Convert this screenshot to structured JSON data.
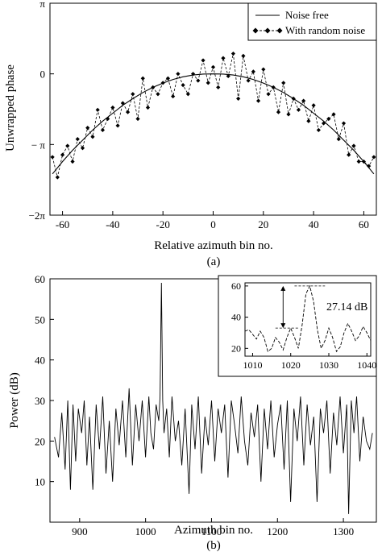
{
  "chart_data": [
    {
      "type": "line",
      "panel_label": "(a)",
      "xlabel": "Relative azimuth bin no.",
      "ylabel": "Unwrapped phase",
      "xlim": [
        -65,
        65
      ],
      "ylim": [
        -6.2832,
        3.1416
      ],
      "x_ticks": [
        -60,
        -40,
        -20,
        0,
        20,
        40,
        60
      ],
      "y_ticks": [
        {
          "value": 3.1416,
          "label": "π"
        },
        {
          "value": 0,
          "label": "0"
        },
        {
          "value": -3.1416,
          "label": "− π"
        },
        {
          "value": -6.2832,
          "label": "−2π"
        }
      ],
      "legend_position": "top-right",
      "series": [
        {
          "name": "Noise free",
          "style": "solid",
          "x": [
            -64,
            -60,
            -56,
            -52,
            -48,
            -44,
            -40,
            -36,
            -32,
            -28,
            -24,
            -20,
            -16,
            -12,
            -8,
            -4,
            0,
            4,
            8,
            12,
            16,
            20,
            24,
            28,
            32,
            36,
            40,
            44,
            48,
            52,
            56,
            60,
            64
          ],
          "y": [
            -4.45,
            -3.9,
            -3.4,
            -2.95,
            -2.5,
            -2.1,
            -1.75,
            -1.4,
            -1.1,
            -0.83,
            -0.6,
            -0.41,
            -0.25,
            -0.13,
            -0.05,
            -0.01,
            0,
            -0.01,
            -0.05,
            -0.13,
            -0.25,
            -0.41,
            -0.6,
            -0.83,
            -1.1,
            -1.4,
            -1.75,
            -2.1,
            -2.5,
            -2.95,
            -3.4,
            -3.9,
            -4.45
          ]
        },
        {
          "name": "With random noise",
          "style": "dashed-diamond",
          "x": [
            -64,
            -62,
            -60,
            -58,
            -56,
            -54,
            -52,
            -50,
            -48,
            -46,
            -44,
            -42,
            -40,
            -38,
            -36,
            -34,
            -32,
            -30,
            -28,
            -26,
            -24,
            -22,
            -20,
            -18,
            -16,
            -14,
            -12,
            -10,
            -8,
            -6,
            -4,
            -2,
            0,
            2,
            4,
            6,
            8,
            10,
            12,
            14,
            16,
            18,
            20,
            22,
            24,
            26,
            28,
            30,
            32,
            34,
            36,
            38,
            40,
            42,
            44,
            46,
            48,
            50,
            52,
            54,
            56,
            58,
            60,
            62,
            64
          ],
          "y": [
            -3.7,
            -4.6,
            -3.6,
            -3.2,
            -3.9,
            -2.9,
            -3.3,
            -2.4,
            -2.8,
            -1.6,
            -2.5,
            -2.0,
            -1.5,
            -2.3,
            -1.3,
            -1.7,
            -0.9,
            -2.0,
            -0.2,
            -1.5,
            -0.6,
            -0.9,
            -0.4,
            -0.2,
            -1.0,
            0.0,
            -0.5,
            -0.9,
            0.0,
            -0.3,
            0.6,
            -0.4,
            0.3,
            -0.6,
            0.7,
            -0.1,
            0.9,
            -1.1,
            0.8,
            -0.3,
            0.1,
            -1.2,
            0.2,
            -0.9,
            -0.6,
            -1.7,
            -0.4,
            -1.8,
            -1.1,
            -1.6,
            -1.2,
            -2.1,
            -1.4,
            -2.5,
            -2.2,
            -2.0,
            -1.8,
            -2.9,
            -2.2,
            -3.6,
            -3.2,
            -3.9,
            -3.9,
            -4.1,
            -3.7
          ]
        }
      ]
    },
    {
      "type": "line",
      "panel_label": "(b)",
      "xlabel": "Azimuth bin no.",
      "ylabel": "Power (dB)",
      "xlim": [
        855,
        1350
      ],
      "ylim": [
        0,
        60
      ],
      "x_ticks": [
        900,
        1000,
        1100,
        1200,
        1300
      ],
      "y_ticks": [
        10,
        20,
        30,
        40,
        50,
        60
      ],
      "series": [
        {
          "name": "",
          "x": [
            862,
            868,
            873,
            878,
            882,
            886,
            890,
            894,
            898,
            903,
            907,
            911,
            915,
            920,
            925,
            930,
            935,
            940,
            945,
            950,
            955,
            960,
            965,
            970,
            975,
            980,
            985,
            990,
            995,
            1000,
            1005,
            1008,
            1012,
            1016,
            1020,
            1022,
            1024,
            1026,
            1028,
            1032,
            1036,
            1040,
            1045,
            1050,
            1055,
            1060,
            1066,
            1070,
            1075,
            1080,
            1085,
            1090,
            1095,
            1100,
            1105,
            1110,
            1115,
            1120,
            1125,
            1130,
            1135,
            1140,
            1145,
            1150,
            1155,
            1160,
            1165,
            1170,
            1175,
            1180,
            1185,
            1190,
            1195,
            1200,
            1205,
            1210,
            1215,
            1220,
            1225,
            1230,
            1235,
            1240,
            1245,
            1250,
            1255,
            1260,
            1265,
            1270,
            1275,
            1280,
            1285,
            1290,
            1295,
            1300,
            1305,
            1308,
            1312,
            1316,
            1320,
            1325,
            1330,
            1335,
            1340,
            1344
          ],
          "y": [
            21,
            16,
            27,
            13,
            30,
            8,
            29,
            15,
            28,
            22,
            30,
            14,
            26,
            8,
            29,
            18,
            31,
            12,
            25,
            10,
            28,
            19,
            30,
            16,
            33,
            14,
            29,
            20,
            30,
            16,
            31,
            22,
            18,
            29,
            25,
            31,
            59,
            30,
            22,
            28,
            16,
            31,
            20,
            25,
            14,
            28,
            7,
            29,
            18,
            31,
            12,
            26,
            19,
            30,
            15,
            28,
            22,
            29,
            11,
            30,
            24,
            17,
            31,
            20,
            14,
            27,
            21,
            29,
            10,
            28,
            18,
            30,
            16,
            24,
            29,
            13,
            30,
            5,
            28,
            20,
            31,
            14,
            29,
            19,
            26,
            5,
            28,
            22,
            30,
            12,
            27,
            19,
            31,
            17,
            29,
            2,
            30,
            22,
            31,
            15,
            26,
            20,
            18,
            22
          ]
        }
      ],
      "inset": {
        "xlim": [
          1008,
          1041
        ],
        "ylim": [
          15,
          62
        ],
        "x_ticks": [
          1010,
          1020,
          1030,
          1040
        ],
        "y_ticks": [
          20,
          40,
          60
        ],
        "annotation": "27.14 dB",
        "peak_level": 60,
        "secondary_level": 33,
        "series": {
          "x": [
            1008,
            1009,
            1010,
            1011,
            1012,
            1013,
            1014,
            1015,
            1016,
            1017,
            1018,
            1019,
            1020,
            1021,
            1022,
            1023,
            1024,
            1025,
            1026,
            1027,
            1028,
            1029,
            1030,
            1031,
            1032,
            1033,
            1034,
            1035,
            1036,
            1037,
            1038,
            1039,
            1040,
            1041
          ],
          "y": [
            31,
            32,
            29,
            26,
            31,
            27,
            18,
            20,
            27,
            24,
            19,
            27,
            33,
            27,
            20,
            35,
            55,
            60,
            50,
            32,
            20,
            25,
            33,
            27,
            18,
            21,
            30,
            36,
            31,
            25,
            28,
            34,
            30,
            25
          ]
        }
      }
    }
  ]
}
